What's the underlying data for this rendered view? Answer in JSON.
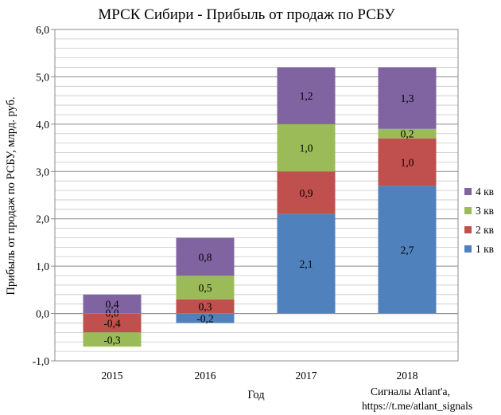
{
  "chart_data": {
    "type": "bar",
    "stacked": true,
    "title": "МРСК Сибири - Прибыль от продаж по РСБУ",
    "xlabel": "Год",
    "ylabel": "Прибыль от продаж по РСБУ, млрд. руб.",
    "categories": [
      "2015",
      "2016",
      "2017",
      "2018"
    ],
    "ylim": [
      -1.0,
      6.0
    ],
    "yticks": [
      -1.0,
      0.0,
      1.0,
      2.0,
      3.0,
      4.0,
      5.0,
      6.0
    ],
    "ytick_labels": [
      "-1,0",
      "0,0",
      "1,0",
      "2,0",
      "3,0",
      "4,0",
      "5,0",
      "6,0"
    ],
    "grid": true,
    "legend_position": "right",
    "series": [
      {
        "name": "1 кв",
        "color": "#4f81bd",
        "values": [
          0.0,
          -0.2,
          2.1,
          2.7
        ],
        "labels": [
          "",
          "-0,2",
          "2,1",
          "2,7"
        ]
      },
      {
        "name": "2 кв",
        "color": "#c0504d",
        "values": [
          -0.4,
          0.3,
          0.9,
          1.0
        ],
        "labels": [
          "-0,4",
          "0,3",
          "0,9",
          "1,0"
        ]
      },
      {
        "name": "3 кв",
        "color": "#9bbb59",
        "values": [
          -0.3,
          0.5,
          1.0,
          0.2
        ],
        "labels": [
          "-0,3",
          "0,5",
          "1,0",
          "0,2"
        ]
      },
      {
        "name": "4 кв",
        "color": "#8064a2",
        "values": [
          0.4,
          0.8,
          1.2,
          1.3
        ],
        "labels": [
          "0,4",
          "0,8",
          "1,2",
          "1,3"
        ]
      }
    ],
    "extra_labels": [
      {
        "category": "2015",
        "text": "0,0"
      }
    ]
  },
  "credit": {
    "line1": "Сигналы Atlant'a,",
    "line2": "https://t.me/atlant_signals"
  }
}
